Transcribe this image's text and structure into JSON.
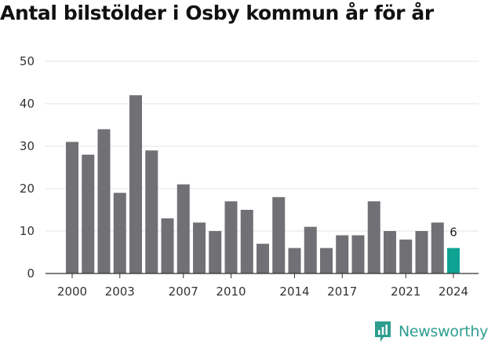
{
  "title": "Antal bilstölder i Osby kommun år för år",
  "brand": {
    "name": "Newsworthy",
    "icon": "newsworthy-logo-icon"
  },
  "colors": {
    "bar": "#707075",
    "highlight": "#0ea393",
    "grid": "#e3e3e3",
    "axis": "#333333",
    "brand": "#2e9e8f"
  },
  "chart_data": {
    "type": "bar",
    "title": "Antal bilstölder i Osby kommun år för år",
    "xlabel": "",
    "ylabel": "",
    "categories": [
      2000,
      2001,
      2002,
      2003,
      2004,
      2005,
      2006,
      2007,
      2008,
      2009,
      2010,
      2011,
      2012,
      2013,
      2014,
      2015,
      2016,
      2017,
      2018,
      2019,
      2020,
      2021,
      2022,
      2023,
      2024
    ],
    "values": [
      31,
      28,
      34,
      19,
      42,
      29,
      13,
      21,
      12,
      10,
      17,
      15,
      7,
      18,
      6,
      11,
      6,
      9,
      9,
      17,
      10,
      8,
      10,
      12,
      6
    ],
    "ylim": [
      0,
      50
    ],
    "yticks": [
      0,
      10,
      20,
      30,
      40,
      50
    ],
    "xticks": [
      2000,
      2003,
      2007,
      2010,
      2014,
      2017,
      2021,
      2024
    ],
    "highlight": {
      "category": 2024,
      "label": "6"
    },
    "grid": true
  }
}
